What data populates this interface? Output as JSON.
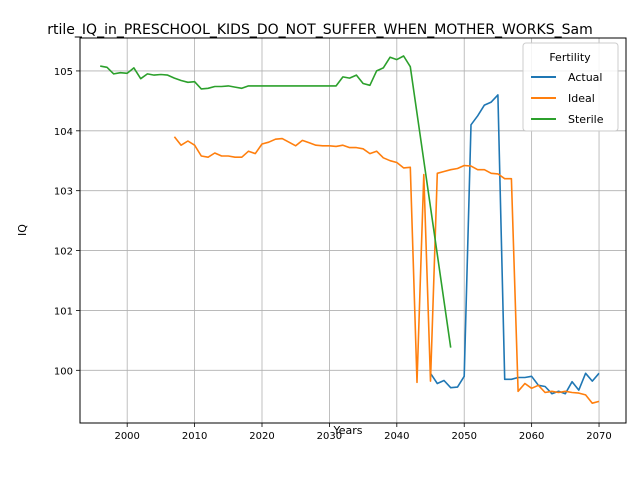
{
  "chart_data": {
    "type": "line",
    "title": "rtile_IQ_in_PRESCHOOL_KIDS_DO_NOT_SUFFER_WHEN_MOTHER_WORKS_Sam",
    "xlabel": "Years",
    "ylabel": "IQ",
    "xlim": [
      1993,
      2074
    ],
    "ylim": [
      99.12,
      105.55
    ],
    "xticks": [
      2000,
      2010,
      2020,
      2030,
      2040,
      2050,
      2060,
      2070
    ],
    "yticks": [
      100,
      101,
      102,
      103,
      104,
      105
    ],
    "grid": true,
    "legend": {
      "title": "Fertility",
      "placement": "top-right"
    },
    "series": [
      {
        "name": "Actual",
        "color": "#1f77b4",
        "x": [
          2045,
          2046,
          2047,
          2048,
          2049,
          2050,
          2051,
          2052,
          2053,
          2054,
          2055,
          2056,
          2057,
          2058,
          2059,
          2060,
          2061,
          2062,
          2063,
          2064,
          2065,
          2066,
          2067,
          2068,
          2069,
          2070
        ],
        "y": [
          99.95,
          99.78,
          99.83,
          99.71,
          99.72,
          99.9,
          104.1,
          104.25,
          104.43,
          104.48,
          104.6,
          99.85,
          99.85,
          99.88,
          99.88,
          99.9,
          99.75,
          99.73,
          99.61,
          99.65,
          99.61,
          99.81,
          99.67,
          99.95,
          99.82,
          99.95
        ]
      },
      {
        "name": "Ideal",
        "color": "#ff7f0e",
        "x": [
          2007,
          2008,
          2009,
          2010,
          2011,
          2012,
          2013,
          2014,
          2015,
          2016,
          2017,
          2018,
          2019,
          2020,
          2021,
          2022,
          2023,
          2024,
          2025,
          2026,
          2027,
          2028,
          2029,
          2030,
          2031,
          2032,
          2033,
          2034,
          2035,
          2036,
          2037,
          2038,
          2039,
          2040,
          2041,
          2042,
          2043,
          2044,
          2045,
          2046,
          2047,
          2048,
          2049,
          2050,
          2051,
          2052,
          2053,
          2054,
          2055,
          2056,
          2057,
          2058,
          2059,
          2060,
          2061,
          2062,
          2063,
          2064,
          2065,
          2066,
          2067,
          2068,
          2069,
          2070
        ],
        "y": [
          103.9,
          103.76,
          103.83,
          103.76,
          103.58,
          103.56,
          103.63,
          103.58,
          103.58,
          103.56,
          103.56,
          103.66,
          103.62,
          103.78,
          103.81,
          103.86,
          103.87,
          103.81,
          103.75,
          103.84,
          103.8,
          103.76,
          103.75,
          103.75,
          103.74,
          103.76,
          103.72,
          103.72,
          103.7,
          103.62,
          103.66,
          103.55,
          103.5,
          103.47,
          103.38,
          103.39,
          99.8,
          103.27,
          99.82,
          103.29,
          103.32,
          103.35,
          103.37,
          103.42,
          103.41,
          103.35,
          103.35,
          103.29,
          103.28,
          103.2,
          103.2,
          99.65,
          99.78,
          99.7,
          99.75,
          99.63,
          99.65,
          99.63,
          99.65,
          99.63,
          99.62,
          99.59,
          99.45,
          99.48
        ]
      },
      {
        "name": "Sterile",
        "color": "#2ca02c",
        "x": [
          1996,
          1997,
          1998,
          1999,
          2000,
          2001,
          2002,
          2003,
          2004,
          2005,
          2006,
          2007,
          2008,
          2009,
          2010,
          2011,
          2012,
          2013,
          2014,
          2015,
          2016,
          2017,
          2018,
          2019,
          2020,
          2021,
          2022,
          2023,
          2024,
          2025,
          2026,
          2027,
          2028,
          2029,
          2030,
          2031,
          2032,
          2033,
          2034,
          2035,
          2036,
          2037,
          2038,
          2039,
          2040,
          2041,
          2042,
          2048
        ],
        "y": [
          105.08,
          105.06,
          104.95,
          104.97,
          104.96,
          105.05,
          104.87,
          104.95,
          104.93,
          104.94,
          104.93,
          104.88,
          104.84,
          104.81,
          104.82,
          104.7,
          104.71,
          104.74,
          104.74,
          104.75,
          104.73,
          104.71,
          104.75,
          104.75,
          104.75,
          104.75,
          104.75,
          104.75,
          104.75,
          104.75,
          104.75,
          104.75,
          104.75,
          104.75,
          104.75,
          104.75,
          104.9,
          104.88,
          104.93,
          104.79,
          104.76,
          105.0,
          105.05,
          105.23,
          105.19,
          105.25,
          105.07,
          100.38
        ]
      }
    ]
  }
}
